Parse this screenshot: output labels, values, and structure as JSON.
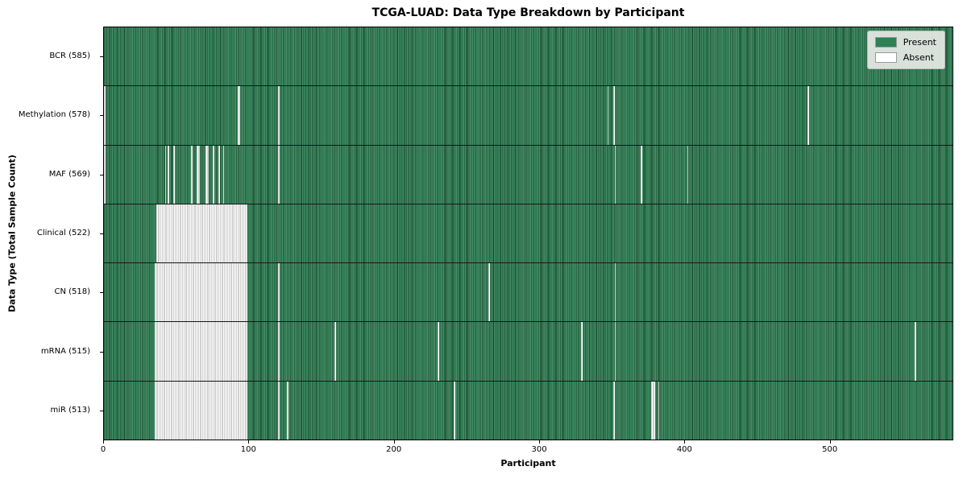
{
  "chart_data": {
    "type": "heatmap",
    "title": "TCGA-LUAD: Data Type Breakdown by Participant",
    "xlabel": "Participant",
    "ylabel": "Data Type (Total Sample Count)",
    "x_range": [
      0,
      585
    ],
    "n_participants": 585,
    "x_ticks": [
      0,
      100,
      200,
      300,
      400,
      500
    ],
    "grid": "off",
    "legend": {
      "position": "upper right",
      "entries": [
        {
          "label": "Present",
          "color": "#2e8155"
        },
        {
          "label": "Absent",
          "color": "#ffffff"
        }
      ]
    },
    "rows": [
      {
        "data_type": "BCR",
        "present_count": 585,
        "label": "BCR (585)",
        "absent_ranges": []
      },
      {
        "data_type": "Methylation",
        "present_count": 578,
        "label": "Methylation (578)",
        "absent_ranges": [
          [
            0,
            0
          ],
          [
            92,
            93
          ],
          [
            120,
            120
          ],
          [
            347,
            347
          ],
          [
            351,
            351
          ],
          [
            485,
            485
          ]
        ]
      },
      {
        "data_type": "MAF",
        "present_count": 569,
        "label": "MAF (569)",
        "absent_ranges": [
          [
            0,
            0
          ],
          [
            42,
            42
          ],
          [
            44,
            44
          ],
          [
            48,
            48
          ],
          [
            60,
            60
          ],
          [
            64,
            65
          ],
          [
            70,
            71
          ],
          [
            75,
            75
          ],
          [
            79,
            79
          ],
          [
            82,
            82
          ],
          [
            120,
            120
          ],
          [
            352,
            352
          ],
          [
            370,
            370
          ],
          [
            402,
            402
          ]
        ]
      },
      {
        "data_type": "Clinical",
        "present_count": 522,
        "label": "Clinical (522)",
        "absent_ranges": [
          [
            36,
            98
          ]
        ]
      },
      {
        "data_type": "CN",
        "present_count": 518,
        "label": "CN (518)",
        "absent_ranges": [
          [
            35,
            98
          ],
          [
            120,
            120
          ],
          [
            265,
            265
          ],
          [
            352,
            352
          ]
        ]
      },
      {
        "data_type": "mRNA",
        "present_count": 515,
        "label": "mRNA (515)",
        "absent_ranges": [
          [
            35,
            98
          ],
          [
            120,
            120
          ],
          [
            159,
            159
          ],
          [
            230,
            230
          ],
          [
            329,
            329
          ],
          [
            352,
            352
          ],
          [
            559,
            559
          ]
        ]
      },
      {
        "data_type": "miR",
        "present_count": 513,
        "label": "miR (513)",
        "absent_ranges": [
          [
            35,
            98
          ],
          [
            120,
            120
          ],
          [
            126,
            126
          ],
          [
            241,
            241
          ],
          [
            351,
            351
          ],
          [
            377,
            379
          ],
          [
            382,
            382
          ]
        ]
      }
    ],
    "colors": {
      "present": "#2e8155",
      "present_edge": "#17482c",
      "absent": "#ffffff",
      "absent_edge": "#a2a2a2",
      "row_separator": "#161616",
      "plot_border": "#000000"
    }
  }
}
